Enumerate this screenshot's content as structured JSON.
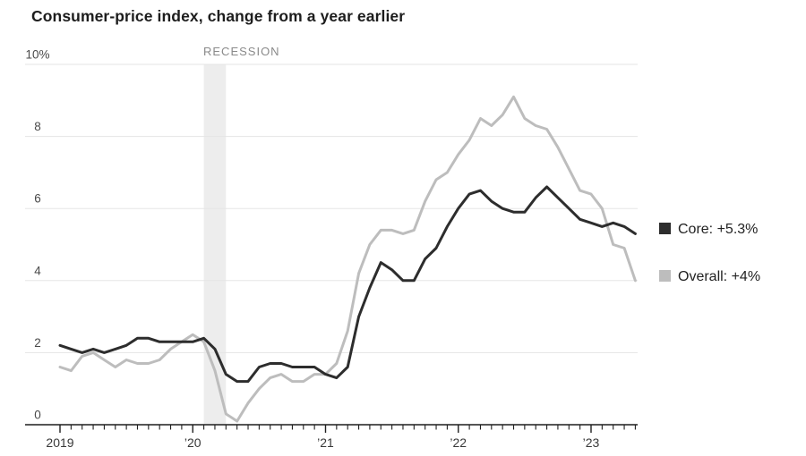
{
  "header": {
    "title": "Consumer-price index, change from a year earlier"
  },
  "chart_data": {
    "type": "line",
    "title": "Consumer-price index, change from a year earlier",
    "x_unit": "month",
    "x_start": "2019-01",
    "x_end": "2023-05",
    "ylim": [
      0,
      10
    ],
    "grid": "horizontal",
    "legend_position": "right",
    "y_ticks": [
      {
        "value": 0,
        "label": "0"
      },
      {
        "value": 2,
        "label": "2"
      },
      {
        "value": 4,
        "label": "4"
      },
      {
        "value": 6,
        "label": "6"
      },
      {
        "value": 8,
        "label": "8"
      },
      {
        "value": 10,
        "label": "10%"
      }
    ],
    "x_tick_labels": [
      {
        "month": 0,
        "label": "2019"
      },
      {
        "month": 12,
        "label": "’20"
      },
      {
        "month": 24,
        "label": "’21"
      },
      {
        "month": 36,
        "label": "’22"
      },
      {
        "month": 48,
        "label": "’23"
      }
    ],
    "series": [
      {
        "name": "Core",
        "legend_label": "Core: +5.3%",
        "color": "#2d2d2d",
        "values": [
          2.2,
          2.1,
          2.0,
          2.1,
          2.0,
          2.1,
          2.2,
          2.4,
          2.4,
          2.3,
          2.3,
          2.3,
          2.3,
          2.4,
          2.1,
          1.4,
          1.2,
          1.2,
          1.6,
          1.7,
          1.7,
          1.6,
          1.6,
          1.6,
          1.4,
          1.3,
          1.6,
          3.0,
          3.8,
          4.5,
          4.3,
          4.0,
          4.0,
          4.6,
          4.9,
          5.5,
          6.0,
          6.4,
          6.5,
          6.2,
          6.0,
          5.9,
          5.9,
          6.3,
          6.6,
          6.3,
          6.0,
          5.7,
          5.6,
          5.5,
          5.6,
          5.5,
          5.3
        ]
      },
      {
        "name": "Overall",
        "legend_label": "Overall: +4%",
        "color": "#bdbdbd",
        "values": [
          1.6,
          1.5,
          1.9,
          2.0,
          1.8,
          1.6,
          1.8,
          1.7,
          1.7,
          1.8,
          2.1,
          2.3,
          2.5,
          2.3,
          1.5,
          0.3,
          0.1,
          0.6,
          1.0,
          1.3,
          1.4,
          1.2,
          1.2,
          1.4,
          1.4,
          1.7,
          2.6,
          4.2,
          5.0,
          5.4,
          5.4,
          5.3,
          5.4,
          6.2,
          6.8,
          7.0,
          7.5,
          7.9,
          8.5,
          8.3,
          8.6,
          9.1,
          8.5,
          8.3,
          8.2,
          7.7,
          7.1,
          6.5,
          6.4,
          6.0,
          5.0,
          4.9,
          4.0
        ]
      }
    ],
    "annotations": {
      "recession": {
        "label": "RECESSION",
        "start_month": 13,
        "end_month": 15,
        "band_color": "#ededed"
      }
    },
    "colors": {
      "gridline": "#e5e5e5",
      "axis": "#1f1f1f"
    }
  }
}
